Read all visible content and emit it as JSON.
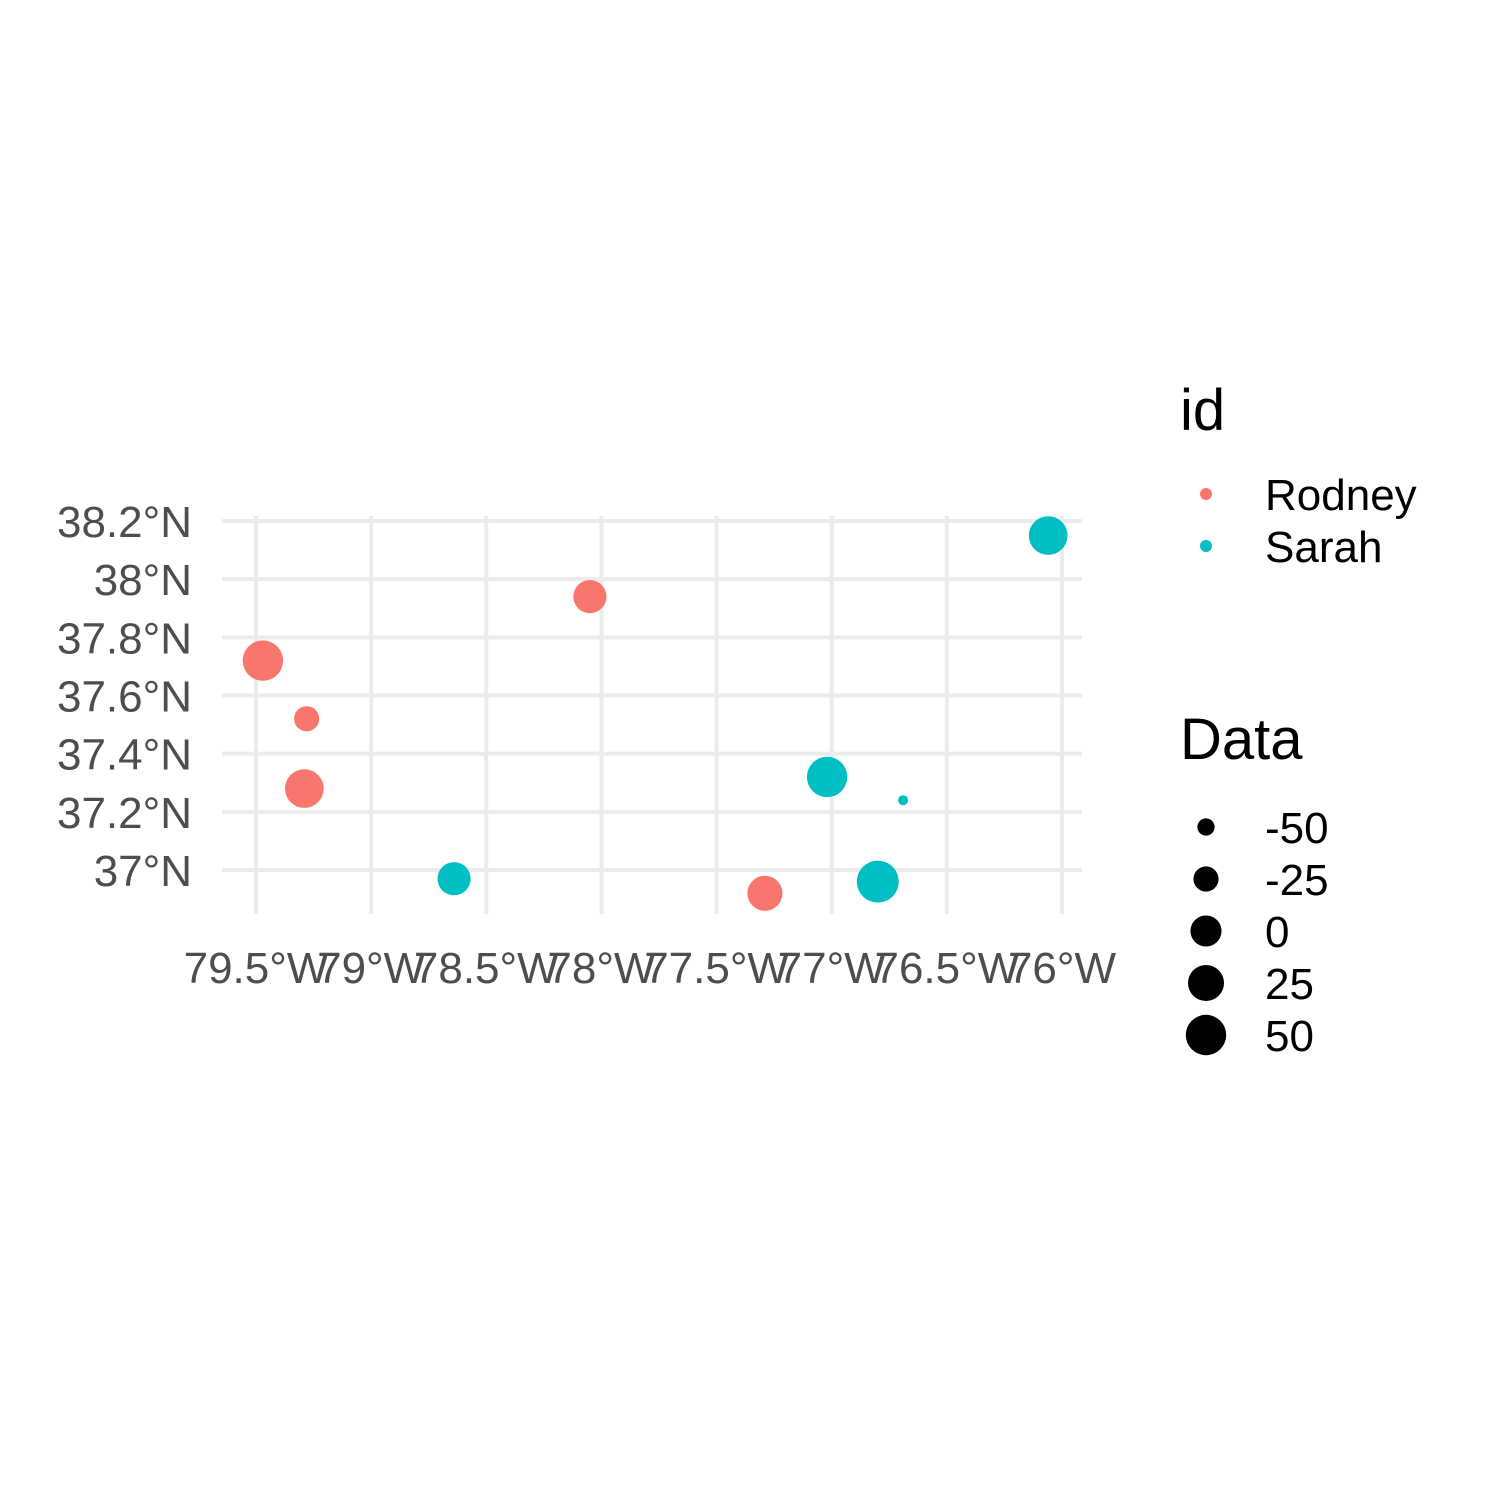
{
  "chart_data": {
    "type": "scatter",
    "title": "",
    "xlabel": "",
    "ylabel": "",
    "x_ticks": [
      {
        "value": -79.5,
        "label": "79.5°W"
      },
      {
        "value": -79.0,
        "label": "79°W"
      },
      {
        "value": -78.5,
        "label": "78.5°W"
      },
      {
        "value": -78.0,
        "label": "78°W"
      },
      {
        "value": -77.5,
        "label": "77.5°W"
      },
      {
        "value": -77.0,
        "label": "77°W"
      },
      {
        "value": -76.5,
        "label": "76.5°W"
      },
      {
        "value": -76.0,
        "label": "76°W"
      }
    ],
    "y_ticks": [
      {
        "value": 37.0,
        "label": "37°N"
      },
      {
        "value": 37.2,
        "label": "37.2°N"
      },
      {
        "value": 37.4,
        "label": "37.4°N"
      },
      {
        "value": 37.6,
        "label": "37.6°N"
      },
      {
        "value": 37.8,
        "label": "37.8°N"
      },
      {
        "value": 38.0,
        "label": "38°N"
      },
      {
        "value": 38.2,
        "label": "38.2°N"
      }
    ],
    "xlim": [
      -79.65,
      -75.9
    ],
    "ylim": [
      36.88,
      38.24
    ],
    "grid": true,
    "series": [
      {
        "name": "Rodney",
        "color": "#F8766D",
        "points": [
          {
            "x": -79.47,
            "y": 37.72,
            "size": 50
          },
          {
            "x": -79.28,
            "y": 37.52,
            "size": -25
          },
          {
            "x": -79.29,
            "y": 37.28,
            "size": 40
          },
          {
            "x": -78.05,
            "y": 37.94,
            "size": 10
          },
          {
            "x": -77.29,
            "y": 36.92,
            "size": 20
          }
        ]
      },
      {
        "name": "Sarah",
        "color": "#00BFC4",
        "points": [
          {
            "x": -78.64,
            "y": 36.97,
            "size": 10
          },
          {
            "x": -77.02,
            "y": 37.32,
            "size": 50
          },
          {
            "x": -76.8,
            "y": 36.96,
            "size": 60
          },
          {
            "x": -76.69,
            "y": 37.24,
            "size": -65
          },
          {
            "x": -76.06,
            "y": 38.15,
            "size": 40
          }
        ]
      }
    ],
    "legend": {
      "placement": "right",
      "color_title": "id",
      "size_title": "Data",
      "color_items": [
        "Rodney",
        "Sarah"
      ],
      "size_items": [
        {
          "label": "-50",
          "value": -50
        },
        {
          "label": "-25",
          "value": -25
        },
        {
          "label": "0",
          "value": 0
        },
        {
          "label": "25",
          "value": 25
        },
        {
          "label": "50",
          "value": 50
        }
      ]
    }
  }
}
